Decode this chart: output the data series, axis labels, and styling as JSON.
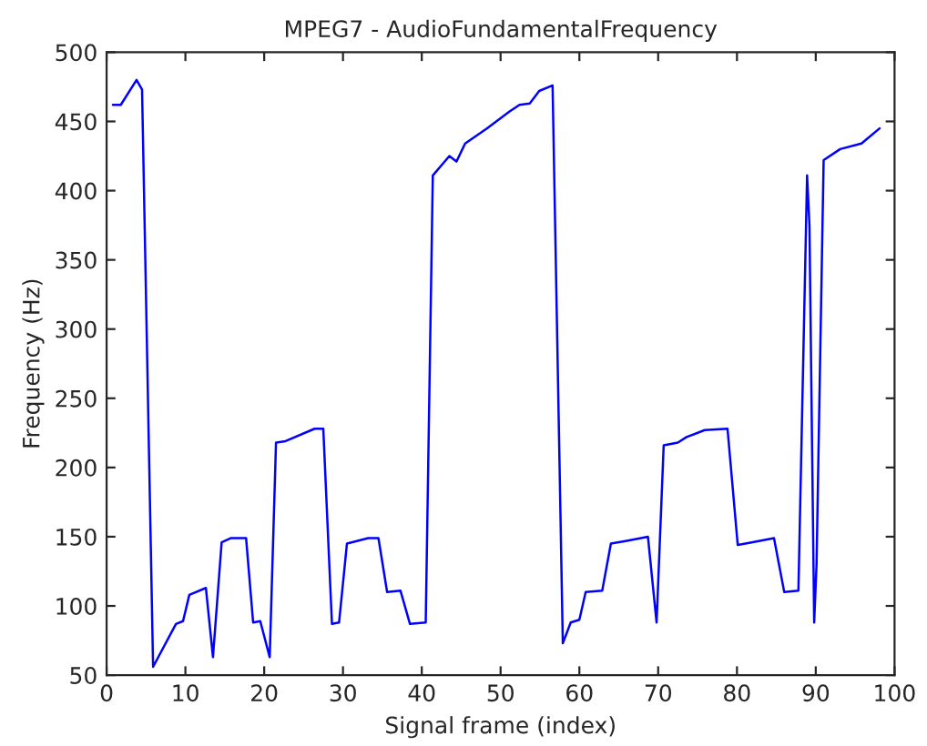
{
  "chart_data": {
    "type": "line",
    "title": "MPEG7 - AudioFundamentalFrequency",
    "xlabel": "Signal frame (index)",
    "ylabel": "Frequency (Hz)",
    "series": [
      {
        "color": "#0000ff",
        "x": [
          0.8,
          1.8,
          3.8,
          4.5,
          5.9,
          8.8,
          9.7,
          10.5,
          12.6,
          13.5,
          14.6,
          15.8,
          17.7,
          18.6,
          19.5,
          20.7,
          21.5,
          22.7,
          26.4,
          27.5,
          28.6,
          29.5,
          30.5,
          33.2,
          34.5,
          35.6,
          37.3,
          38.5,
          40.5,
          41.4,
          43.5,
          44.4,
          45.5,
          48.3,
          51.1,
          52.4,
          53.7,
          54.9,
          56.6,
          57.9,
          58.9,
          60,
          60.8,
          62.9,
          64,
          66,
          68.7,
          69.8,
          70.7,
          72.5,
          73.6,
          75.9,
          78.8,
          80.1,
          82,
          84.7,
          86,
          87.8,
          88.9,
          89.2,
          89.8,
          90.1,
          91,
          93.1,
          95.8,
          98.1
        ],
        "values": [
          462,
          462,
          480,
          473,
          56,
          87,
          89,
          108,
          113,
          63,
          146,
          149,
          149,
          88,
          89,
          63,
          218,
          219,
          228,
          228,
          87,
          88,
          145,
          149,
          149,
          110,
          111,
          87,
          88,
          411,
          425,
          421,
          434,
          445,
          457,
          462,
          463,
          472,
          476,
          73,
          88,
          90,
          110,
          111,
          145,
          147,
          150,
          88,
          216,
          218,
          222,
          227,
          228,
          144,
          146,
          149,
          110,
          111,
          411,
          375,
          88,
          130,
          422,
          430,
          434,
          445
        ]
      }
    ],
    "xlim": [
      0,
      100
    ],
    "ylim": [
      50,
      500
    ],
    "xticks": [
      0,
      10,
      20,
      30,
      40,
      50,
      60,
      70,
      80,
      90,
      100
    ],
    "yticks": [
      50,
      100,
      150,
      200,
      250,
      300,
      350,
      400,
      450,
      500
    ],
    "grid": false
  }
}
